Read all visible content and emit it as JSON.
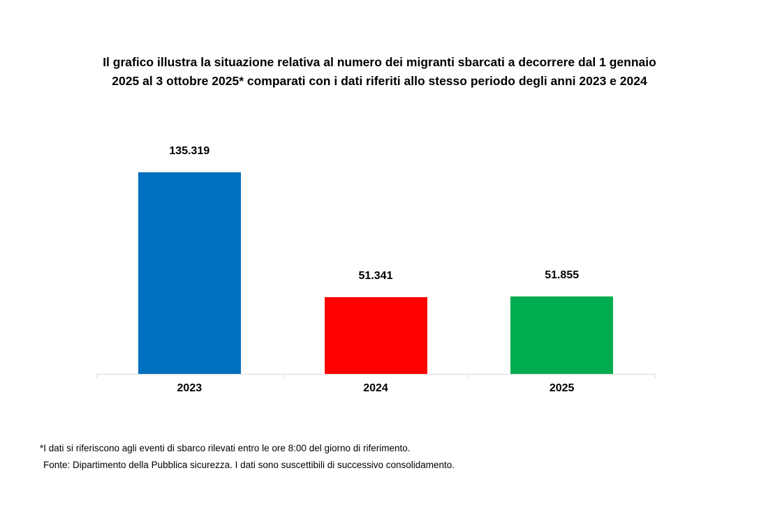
{
  "title": "Il grafico illustra la situazione relativa al numero dei migranti sbarcati a decorrere dal 1 gennaio 2025 al 3 ottobre 2025* comparati con i dati riferiti allo stesso periodo degli anni 2023 e 2024",
  "chart_data": {
    "type": "bar",
    "categories": [
      "2023",
      "2024",
      "2025"
    ],
    "values": [
      135319,
      51341,
      51855
    ],
    "value_labels": [
      "135.319",
      "51.341",
      "51.855"
    ],
    "bar_colors": [
      "#0070C0",
      "#FF0000",
      "#00AC4F"
    ],
    "title": "Il grafico illustra la situazione relativa al numero dei migranti sbarcati a decorrere dal 1 gennaio 2025 al 3 ottobre 2025* comparati con i dati riferiti allo stesso periodo degli anni 2023 e 2024",
    "xlabel": "",
    "ylabel": "",
    "ylim": [
      0,
      135319
    ],
    "grid": false,
    "legend": false,
    "axis_line_color": "#D9D9D9"
  },
  "footnotes": [
    "*I dati si riferiscono agli eventi di sbarco rilevati entro le ore 8:00 del giorno di riferimento.",
    "Fonte: Dipartimento della Pubblica sicurezza. I dati sono suscettibili di successivo consolidamento."
  ]
}
